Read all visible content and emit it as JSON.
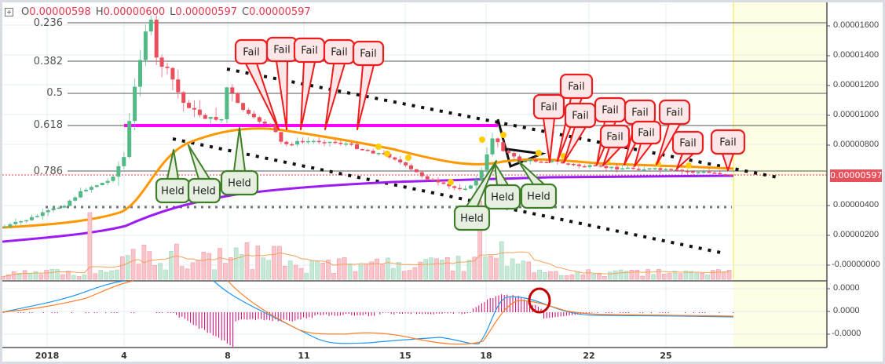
{
  "legend": {
    "icon": "plus-square-icon",
    "open_label": "O",
    "open_value": "0.00000598",
    "high_label": "H",
    "high_value": "0.00000600",
    "low_label": "L",
    "low_value": "0.00000597",
    "close_label": "C",
    "close_value": "0.00000597"
  },
  "price_axis": {
    "ticks": [
      "0.00001600",
      "0.00001400",
      "0.00001200",
      "0.00001000",
      "0.00000800",
      "0.00000400",
      "0.00000200",
      "-0.00000000"
    ],
    "last_price": "0.00000597",
    "last_price_color": "#e8505b"
  },
  "macd_axis": {
    "ticks": [
      "0.0000",
      "0.0000",
      "-0.0000"
    ]
  },
  "time_axis": {
    "ticks": [
      "2018",
      "4",
      "8",
      "11",
      "15",
      "18",
      "22",
      "25"
    ]
  },
  "fib_levels": [
    "0.236",
    "0.382",
    "0.5",
    "0.618",
    "0.786"
  ],
  "annotations": {
    "fail_label": "Fail",
    "held_label": "Held",
    "fail_count": 15,
    "held_count": 6
  },
  "colors": {
    "up": "#53b987",
    "down": "#eb4d5c",
    "ema_orange": "#ff9800",
    "ema_purple": "#9c1cf2",
    "magenta_line": "#ff00ff",
    "macd_blue": "#2196f3",
    "signal_orange": "#ff7f27",
    "hist": "#d0006f",
    "fail_border": "#ee1c1c",
    "held_border": "#3f7f2a",
    "forecast_bg": "#fdfde4"
  },
  "chart_data": {
    "type": "candlestick",
    "title": "",
    "xlabel": "",
    "ylabel": "",
    "x": [
      "Jan 1",
      "Jan 4",
      "Jan 8",
      "Jan 11",
      "Jan 15",
      "Jan 18",
      "Jan 22",
      "Jan 25"
    ],
    "ylim": [
      0.0,
      1.75e-05
    ],
    "approx_close_path": [
      {
        "date": "Jan 1",
        "close": 2.7e-06
      },
      {
        "date": "Jan 3",
        "close": 4e-06
      },
      {
        "date": "Jan 4",
        "close": 9e-06
      },
      {
        "date": "Jan 5",
        "close": 1.65e-05
      },
      {
        "date": "Jan 6",
        "close": 1.15e-05
      },
      {
        "date": "Jan 7",
        "close": 1e-05
      },
      {
        "date": "Jan 8",
        "close": 1.2e-05
      },
      {
        "date": "Jan 9",
        "close": 9.2e-06
      },
      {
        "date": "Jan 11",
        "close": 9e-06
      },
      {
        "date": "Jan 13",
        "close": 8e-06
      },
      {
        "date": "Jan 15",
        "close": 6.2e-06
      },
      {
        "date": "Jan 17",
        "close": 5.8e-06
      },
      {
        "date": "Jan 18",
        "close": 8.8e-06
      },
      {
        "date": "Jan 20",
        "close": 6.8e-06
      },
      {
        "date": "Jan 22",
        "close": 6.4e-06
      },
      {
        "date": "Jan 25",
        "close": 6.1e-06
      },
      {
        "date": "Jan 27",
        "close": 5.97e-06
      }
    ],
    "indicators": [
      "EMA (orange)",
      "EMA (purple)",
      "Volume with MA",
      "MACD (12,26,9)"
    ],
    "horizontal_levels": {
      "magenta_resistance": 9.2e-06,
      "dotted_support": 3.9e-06,
      "last_price": 5.97e-06
    },
    "fib_retracement": [
      {
        "level": "0.236",
        "price": 1.62e-05
      },
      {
        "level": "0.382",
        "price": 1.36e-05
      },
      {
        "level": "0.5",
        "price": 1.15e-05
      },
      {
        "level": "0.618",
        "price": 9.4e-06
      },
      {
        "level": "0.786",
        "price": 6.4e-06
      }
    ]
  }
}
